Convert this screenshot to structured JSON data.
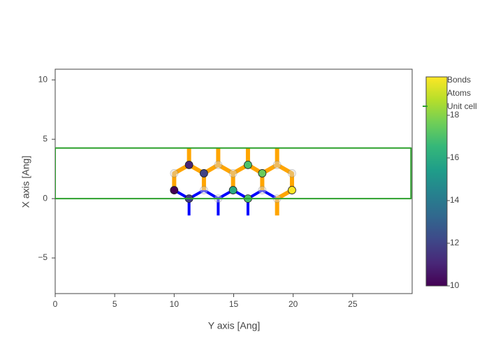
{
  "chart_data": {
    "type": "scatter",
    "xlabel": "Y axis [Ang]",
    "ylabel": "X axis [Ang]",
    "xlim": [
      0,
      30
    ],
    "ylim": [
      -8,
      10.9
    ],
    "xticks": [
      0,
      5,
      10,
      15,
      20,
      25
    ],
    "yticks": [
      {
        "value": -5,
        "label": "−5"
      },
      0,
      5,
      10
    ],
    "colorbar": {
      "lim": [
        10,
        19.8
      ],
      "ticks": [
        10,
        12,
        14,
        16,
        18
      ]
    },
    "series": [
      {
        "name": "Bonds",
        "mode": "lines",
        "color": "#0000ff",
        "width": 4,
        "x": [
          10,
          11.25,
          12.5,
          13.7,
          14.95,
          16.2,
          17.4,
          18.65,
          null,
          11.25,
          11.25,
          null,
          13.7,
          13.7,
          null,
          16.2,
          16.2
        ],
        "y": [
          0.71,
          0,
          0.71,
          0,
          0.71,
          0,
          0.71,
          0,
          null,
          0,
          -1.42,
          null,
          0,
          -1.42,
          null,
          0,
          -1.42
        ]
      },
      {
        "mode": "lines",
        "color": "#ffa500",
        "width": 6,
        "x": [
          10,
          10,
          11.25,
          12.5,
          13.7,
          14.95,
          16.2,
          17.4,
          18.65,
          19.9,
          19.9,
          18.65,
          18.65,
          null,
          12.5,
          12.5,
          null,
          14.95,
          14.95,
          null,
          17.4,
          17.4,
          null,
          11.25,
          11.25,
          null,
          13.7,
          13.7,
          null,
          16.2,
          16.2,
          null,
          18.65,
          18.65
        ],
        "y": [
          0.71,
          2.13,
          2.84,
          2.13,
          2.84,
          2.13,
          2.84,
          2.13,
          2.84,
          2.13,
          0.71,
          0,
          -1.42,
          null,
          0.71,
          2.13,
          null,
          0.71,
          2.13,
          null,
          0.71,
          2.13,
          null,
          2.84,
          4.26,
          null,
          2.84,
          4.26,
          null,
          2.84,
          4.26,
          null,
          2.84,
          4.26
        ]
      },
      {
        "mode": "markers",
        "color": "#d9d9d9",
        "opacity": 0.45,
        "x": [
          10,
          12.5,
          13.7,
          13.7,
          14.95,
          17.4,
          18.65,
          18.65,
          19.9
        ],
        "y": [
          2.13,
          0.71,
          2.84,
          0,
          2.13,
          0.71,
          2.84,
          0,
          2.13
        ]
      },
      {
        "name": "Atoms",
        "mode": "markers",
        "x": [
          10,
          11.25,
          11.25,
          12.5,
          14.95,
          16.2,
          16.2,
          17.4,
          19.9
        ],
        "y": [
          0.71,
          2.84,
          0,
          2.13,
          0.71,
          2.84,
          0,
          2.13,
          0.71
        ],
        "color_values": [
          10,
          11,
          11.8,
          12,
          16,
          17,
          17,
          17.5,
          19.8
        ]
      },
      {
        "name": "Unit cell",
        "mode": "lines",
        "color": "#2ca02c",
        "width": 2,
        "x": [
          0,
          29.9,
          29.9,
          0,
          0
        ],
        "y": [
          0,
          0,
          4.26,
          4.26,
          0
        ]
      }
    ]
  }
}
